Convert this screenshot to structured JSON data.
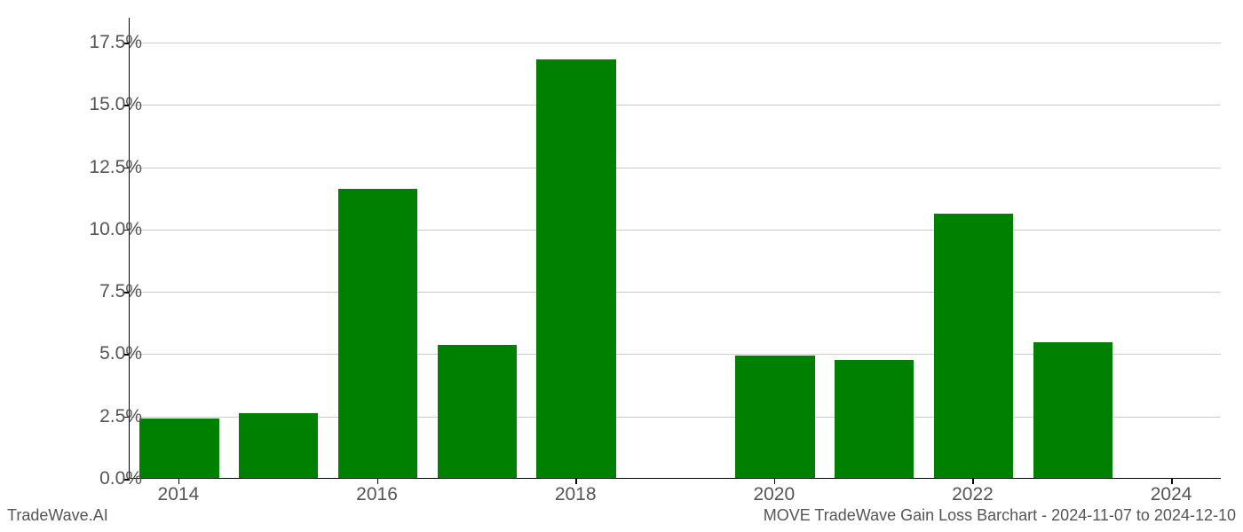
{
  "chart": {
    "type": "bar",
    "footer_left": "TradeWave.AI",
    "footer_right": "MOVE TradeWave Gain Loss Barchart - 2024-11-07 to 2024-12-10",
    "background_color": "#ffffff",
    "grid_color": "#cccccc",
    "axis_color": "#000000",
    "bar_color": "#008000",
    "label_color": "#555555",
    "label_fontsize": 21,
    "footer_fontsize": 18,
    "ylim": [
      0,
      18.5
    ],
    "y_ticks": [
      0.0,
      2.5,
      5.0,
      7.5,
      10.0,
      12.5,
      15.0,
      17.5
    ],
    "y_tick_labels": [
      "0.0%",
      "2.5%",
      "5.0%",
      "7.5%",
      "10.0%",
      "12.5%",
      "15.0%",
      "17.5%"
    ],
    "x_ticks": [
      2014,
      2016,
      2018,
      2020,
      2022,
      2024
    ],
    "x_tick_labels": [
      "2014",
      "2016",
      "2018",
      "2020",
      "2022",
      "2024"
    ],
    "x_range": [
      2013.5,
      2024.5
    ],
    "bar_width": 0.8,
    "data": [
      {
        "year": 2014,
        "value": 2.4
      },
      {
        "year": 2015,
        "value": 2.6
      },
      {
        "year": 2016,
        "value": 11.6
      },
      {
        "year": 2017,
        "value": 5.35
      },
      {
        "year": 2018,
        "value": 16.8
      },
      {
        "year": 2019,
        "value": 0.0
      },
      {
        "year": 2020,
        "value": 4.9
      },
      {
        "year": 2021,
        "value": 4.75
      },
      {
        "year": 2022,
        "value": 10.6
      },
      {
        "year": 2023,
        "value": 5.45
      },
      {
        "year": 2024,
        "value": 0.0
      }
    ]
  }
}
